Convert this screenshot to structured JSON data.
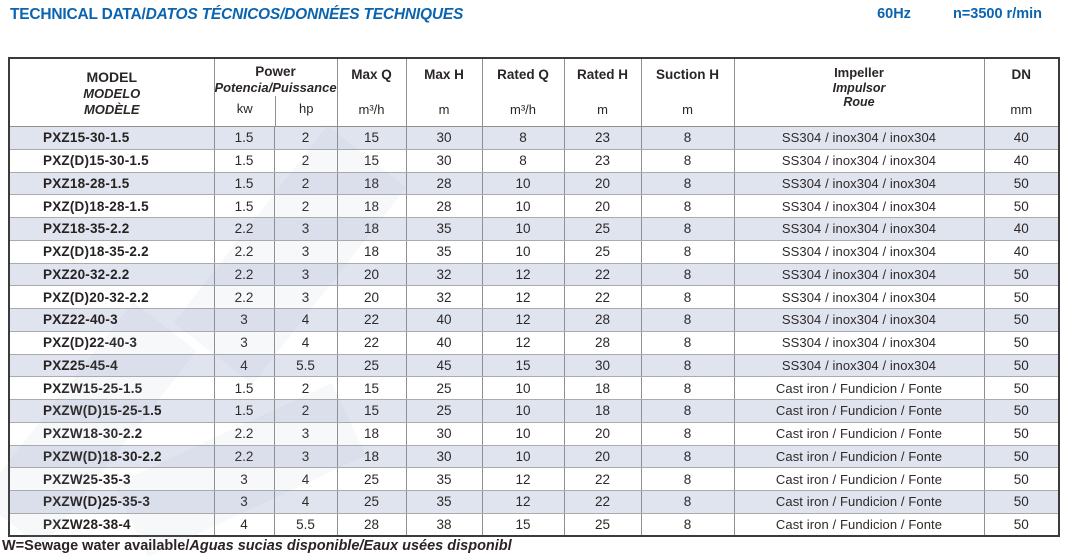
{
  "page": {
    "title": {
      "en": "TECHNICAL DATA/",
      "translations": "DATOS TÉCNICOS/DONNÉES TECHNIQUES"
    },
    "frequency": "60Hz",
    "speed": "n=3500 r/min",
    "footnote": {
      "en": "W=Sewage water available/",
      "translations": "Aguas sucias disponible/Eaux usées disponibl"
    }
  },
  "colors": {
    "accent_blue": "#0b64af",
    "row_shade": "#e0e4ef",
    "border_dark": "#3b3b3b",
    "border_gray": "#8f8f8f",
    "text_dark": "#2b2626"
  },
  "table": {
    "header": {
      "model": {
        "l1": "MODEL",
        "l2": "MODELO",
        "l3": "MODÈLE"
      },
      "power": {
        "l1": "Power",
        "l2": "Potencia/Puissance",
        "unit1": "kw",
        "unit2": "hp"
      },
      "max_q": {
        "label": "Max Q",
        "unit": "m³/h"
      },
      "max_h": {
        "label": "Max H",
        "unit": "m"
      },
      "rated_q": {
        "label": "Rated Q",
        "unit": "m³/h"
      },
      "rated_h": {
        "label": "Rated H",
        "unit": "m"
      },
      "suction_h": {
        "label": "Suction H",
        "unit": "m"
      },
      "impeller": {
        "l1": "Impeller",
        "l2": "Impulsor",
        "l3": "Roue"
      },
      "dn": {
        "label": "DN",
        "unit": "mm"
      }
    },
    "rows": [
      {
        "model": "PXZ15-30-1.5",
        "kw": "1.5",
        "hp": "2",
        "max_q": "15",
        "max_h": "30",
        "rated_q": "8",
        "rated_h": "23",
        "suction_h": "8",
        "impeller": "SS304 / inox304 / inox304",
        "dn": "40"
      },
      {
        "model": "PXZ(D)15-30-1.5",
        "kw": "1.5",
        "hp": "2",
        "max_q": "15",
        "max_h": "30",
        "rated_q": "8",
        "rated_h": "23",
        "suction_h": "8",
        "impeller": "SS304 / inox304 / inox304",
        "dn": "40"
      },
      {
        "model": "PXZ18-28-1.5",
        "kw": "1.5",
        "hp": "2",
        "max_q": "18",
        "max_h": "28",
        "rated_q": "10",
        "rated_h": "20",
        "suction_h": "8",
        "impeller": "SS304 / inox304 / inox304",
        "dn": "50"
      },
      {
        "model": "PXZ(D)18-28-1.5",
        "kw": "1.5",
        "hp": "2",
        "max_q": "18",
        "max_h": "28",
        "rated_q": "10",
        "rated_h": "20",
        "suction_h": "8",
        "impeller": "SS304 / inox304 / inox304",
        "dn": "50"
      },
      {
        "model": "PXZ18-35-2.2",
        "kw": "2.2",
        "hp": "3",
        "max_q": "18",
        "max_h": "35",
        "rated_q": "10",
        "rated_h": "25",
        "suction_h": "8",
        "impeller": "SS304 / inox304 / inox304",
        "dn": "40"
      },
      {
        "model": "PXZ(D)18-35-2.2",
        "kw": "2.2",
        "hp": "3",
        "max_q": "18",
        "max_h": "35",
        "rated_q": "10",
        "rated_h": "25",
        "suction_h": "8",
        "impeller": "SS304 / inox304 / inox304",
        "dn": "40"
      },
      {
        "model": "PXZ20-32-2.2",
        "kw": "2.2",
        "hp": "3",
        "max_q": "20",
        "max_h": "32",
        "rated_q": "12",
        "rated_h": "22",
        "suction_h": "8",
        "impeller": "SS304 / inox304 / inox304",
        "dn": "50"
      },
      {
        "model": "PXZ(D)20-32-2.2",
        "kw": "2.2",
        "hp": "3",
        "max_q": "20",
        "max_h": "32",
        "rated_q": "12",
        "rated_h": "22",
        "suction_h": "8",
        "impeller": "SS304 / inox304 / inox304",
        "dn": "50"
      },
      {
        "model": "PXZ22-40-3",
        "kw": "3",
        "hp": "4",
        "max_q": "22",
        "max_h": "40",
        "rated_q": "12",
        "rated_h": "28",
        "suction_h": "8",
        "impeller": "SS304 / inox304 / inox304",
        "dn": "50"
      },
      {
        "model": "PXZ(D)22-40-3",
        "kw": "3",
        "hp": "4",
        "max_q": "22",
        "max_h": "40",
        "rated_q": "12",
        "rated_h": "28",
        "suction_h": "8",
        "impeller": "SS304 / inox304 / inox304",
        "dn": "50"
      },
      {
        "model": "PXZ25-45-4",
        "kw": "4",
        "hp": "5.5",
        "max_q": "25",
        "max_h": "45",
        "rated_q": "15",
        "rated_h": "30",
        "suction_h": "8",
        "impeller": "SS304 / inox304 / inox304",
        "dn": "50"
      },
      {
        "model": "PXZW15-25-1.5",
        "kw": "1.5",
        "hp": "2",
        "max_q": "15",
        "max_h": "25",
        "rated_q": "10",
        "rated_h": "18",
        "suction_h": "8",
        "impeller": "Cast iron / Fundicion / Fonte",
        "dn": "50"
      },
      {
        "model": "PXZW(D)15-25-1.5",
        "kw": "1.5",
        "hp": "2",
        "max_q": "15",
        "max_h": "25",
        "rated_q": "10",
        "rated_h": "18",
        "suction_h": "8",
        "impeller": "Cast iron / Fundicion / Fonte",
        "dn": "50"
      },
      {
        "model": "PXZW18-30-2.2",
        "kw": "2.2",
        "hp": "3",
        "max_q": "18",
        "max_h": "30",
        "rated_q": "10",
        "rated_h": "20",
        "suction_h": "8",
        "impeller": "Cast iron / Fundicion / Fonte",
        "dn": "50"
      },
      {
        "model": "PXZW(D)18-30-2.2",
        "kw": "2.2",
        "hp": "3",
        "max_q": "18",
        "max_h": "30",
        "rated_q": "10",
        "rated_h": "20",
        "suction_h": "8",
        "impeller": "Cast iron / Fundicion / Fonte",
        "dn": "50"
      },
      {
        "model": "PXZW25-35-3",
        "kw": "3",
        "hp": "4",
        "max_q": "25",
        "max_h": "35",
        "rated_q": "12",
        "rated_h": "22",
        "suction_h": "8",
        "impeller": "Cast iron / Fundicion / Fonte",
        "dn": "50"
      },
      {
        "model": "PXZW(D)25-35-3",
        "kw": "3",
        "hp": "4",
        "max_q": "25",
        "max_h": "35",
        "rated_q": "12",
        "rated_h": "22",
        "suction_h": "8",
        "impeller": "Cast iron / Fundicion / Fonte",
        "dn": "50"
      },
      {
        "model": "PXZW28-38-4",
        "kw": "4",
        "hp": "5.5",
        "max_q": "28",
        "max_h": "38",
        "rated_q": "15",
        "rated_h": "25",
        "suction_h": "8",
        "impeller": "Cast iron / Fundicion / Fonte",
        "dn": "50"
      }
    ]
  }
}
